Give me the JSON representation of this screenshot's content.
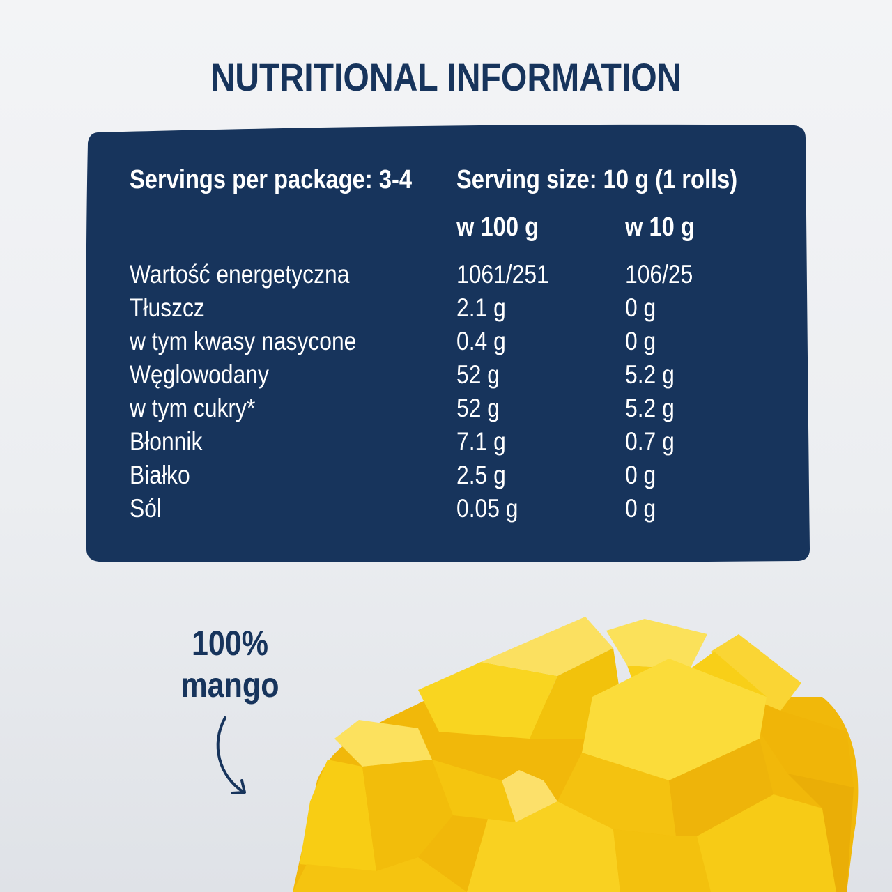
{
  "title": "NUTRITIONAL INFORMATION",
  "panel": {
    "servings_per_package": "Servings per package: 3-4",
    "serving_size": "Serving size: 10 g (1 rolls)",
    "col_100g": "w 100 g",
    "col_serving": "w 10 g",
    "rows": [
      {
        "name": "Wartość energetyczna",
        "per100": "1061/251",
        "perServing": "106/25"
      },
      {
        "name": "Tłuszcz",
        "per100": "2.1 g",
        "perServing": "0 g"
      },
      {
        "name": "w tym kwasy nasycone",
        "per100": "0.4 g",
        "perServing": "0 g"
      },
      {
        "name": "Węglowodany",
        "per100": "52 g",
        "perServing": "5.2 g"
      },
      {
        "name": "w tym cukry*",
        "per100": "52 g",
        "perServing": "5.2 g"
      },
      {
        "name": "Błonnik",
        "per100": "7.1 g",
        "perServing": "0.7 g"
      },
      {
        "name": "Białko",
        "per100": "2.5 g",
        "perServing": "0 g"
      },
      {
        "name": "Sól",
        "per100": "0.05 g",
        "perServing": "0 g"
      }
    ]
  },
  "badge": {
    "line1": "100%",
    "line2": "mango"
  },
  "colors": {
    "navy": "#17345c",
    "mango": "#f7cd0e",
    "background": "#eceef1"
  }
}
